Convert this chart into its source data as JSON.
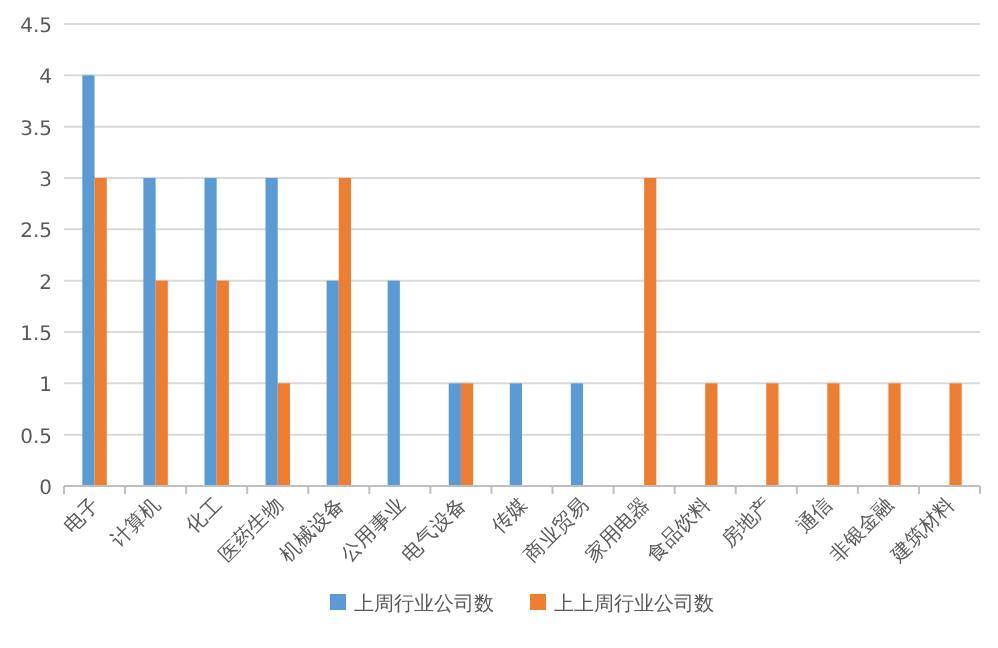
{
  "chart_data": {
    "type": "bar",
    "categories": [
      "电子",
      "计算机",
      "化工",
      "医药生物",
      "机械设备",
      "公用事业",
      "电气设备",
      "传媒",
      "商业贸易",
      "家用电器",
      "食品饮料",
      "房地产",
      "通信",
      "非银金融",
      "建筑材料"
    ],
    "series": [
      {
        "name": "上周行业公司数",
        "color": "#5b9bd5",
        "values": [
          4,
          3,
          3,
          3,
          2,
          2,
          1,
          1,
          1,
          0,
          0,
          0,
          0,
          0,
          0
        ]
      },
      {
        "name": "上上周行业公司数",
        "color": "#ed7d31",
        "values": [
          3,
          2,
          2,
          1,
          3,
          0,
          1,
          0,
          0,
          3,
          1,
          1,
          1,
          1,
          1
        ]
      }
    ],
    "ylim": [
      0,
      4.5
    ],
    "yticks": [
      0,
      0.5,
      1,
      1.5,
      2,
      2.5,
      3,
      3.5,
      4,
      4.5
    ],
    "grid": "y",
    "legend": "bottom"
  }
}
